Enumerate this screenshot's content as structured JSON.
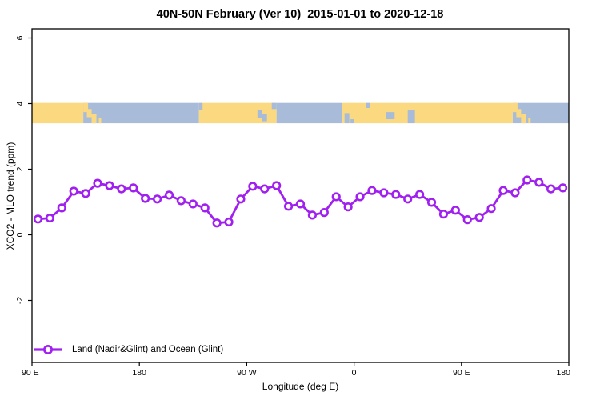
{
  "title": "40N-50N February (Ver 10)  2015-01-01 to 2020-12-18",
  "legend": {
    "label": "Land (Nadir&Glint) and Ocean (Glint)"
  },
  "colors": {
    "series": "#A020F0",
    "land": "#FBD980",
    "ocean": "#A8BCDA",
    "axis": "#000000",
    "marker_fill": "#FFFFFF"
  },
  "chart_data": {
    "type": "line",
    "title": "40N-50N February (Ver 10)  2015-01-01 to 2020-12-18",
    "xlabel": "Longitude (deg E)",
    "ylabel": "XCO2 - MLO trend (ppm)",
    "series_name": "Land (Nadir&Glint) and Ocean (Glint)",
    "xlim": [
      90,
      540
    ],
    "ylim": [
      -3.9,
      6.3
    ],
    "grid": false,
    "legend_position": "bottom-left",
    "marker": "open-circle",
    "xticks": [
      {
        "value": 90,
        "label": "90 E"
      },
      {
        "value": 180,
        "label": "180"
      },
      {
        "value": 270,
        "label": "90 W"
      },
      {
        "value": 360,
        "label": "0"
      },
      {
        "value": 450,
        "label": "90 E"
      },
      {
        "value": 540,
        "label": "180"
      }
    ],
    "yticks": [
      -2,
      0,
      2,
      4,
      6
    ],
    "x": [
      95,
      105,
      115,
      125,
      135,
      145,
      155,
      165,
      175,
      185,
      195,
      205,
      215,
      225,
      235,
      245,
      255,
      265,
      275,
      285,
      295,
      305,
      315,
      325,
      335,
      345,
      355,
      365,
      375,
      385,
      395,
      405,
      415,
      425,
      435,
      445,
      455,
      465,
      475,
      485,
      495,
      505,
      515,
      525,
      535
    ],
    "y": [
      0.48,
      0.51,
      0.82,
      1.33,
      1.26,
      1.57,
      1.5,
      1.4,
      1.43,
      1.11,
      1.09,
      1.21,
      1.04,
      0.94,
      0.82,
      0.36,
      0.39,
      1.09,
      1.48,
      1.4,
      1.5,
      0.87,
      0.94,
      0.6,
      0.68,
      1.16,
      0.85,
      1.16,
      1.35,
      1.28,
      1.23,
      1.09,
      1.23,
      0.99,
      0.63,
      0.75,
      0.46,
      0.53,
      0.8,
      1.35,
      1.28,
      1.67,
      1.6,
      1.4,
      1.43
    ],
    "map_band": {
      "description": "40N-50N world land/ocean strip, longitudes 90E eastward wrapping to 180",
      "y_top_value": 4.02,
      "y_bottom_value": 3.4,
      "segments": [
        {
          "from": 90,
          "to": 133,
          "surface": "land"
        },
        {
          "from": 133,
          "to": 230,
          "surface": "ocean"
        },
        {
          "from": 230,
          "to": 295,
          "surface": "land"
        },
        {
          "from": 295,
          "to": 350,
          "surface": "ocean"
        },
        {
          "from": 350,
          "to": 493,
          "surface": "land"
        },
        {
          "from": 493,
          "to": 540,
          "surface": "ocean"
        }
      ],
      "details": [
        {
          "from": 133,
          "to": 137,
          "top": 0.0,
          "bot": 0.45,
          "surface": "land"
        },
        {
          "from": 136,
          "to": 140,
          "top": 0.3,
          "bot": 0.7,
          "surface": "land"
        },
        {
          "from": 140,
          "to": 144,
          "top": 0.55,
          "bot": 1.0,
          "surface": "land"
        },
        {
          "from": 146,
          "to": 148,
          "top": 0.75,
          "bot": 1.0,
          "surface": "land"
        },
        {
          "from": 230,
          "to": 233,
          "top": 0.0,
          "bot": 0.35,
          "surface": "ocean"
        },
        {
          "from": 279,
          "to": 283,
          "top": 0.35,
          "bot": 0.75,
          "surface": "ocean"
        },
        {
          "from": 283,
          "to": 287,
          "top": 0.55,
          "bot": 0.9,
          "surface": "ocean"
        },
        {
          "from": 291,
          "to": 295,
          "top": 0.0,
          "bot": 0.3,
          "surface": "ocean"
        },
        {
          "from": 352,
          "to": 356,
          "top": 0.5,
          "bot": 1.0,
          "surface": "ocean"
        },
        {
          "from": 357,
          "to": 360,
          "top": 0.8,
          "bot": 1.0,
          "surface": "ocean"
        },
        {
          "from": 370,
          "to": 373,
          "top": 0.0,
          "bot": 0.25,
          "surface": "ocean"
        },
        {
          "from": 387,
          "to": 394,
          "top": 0.45,
          "bot": 0.8,
          "surface": "ocean"
        },
        {
          "from": 405,
          "to": 411,
          "top": 0.35,
          "bot": 1.0,
          "surface": "ocean"
        },
        {
          "from": 493,
          "to": 497,
          "top": 0.0,
          "bot": 0.45,
          "surface": "land"
        },
        {
          "from": 496,
          "to": 500,
          "top": 0.3,
          "bot": 0.7,
          "surface": "land"
        },
        {
          "from": 500,
          "to": 504,
          "top": 0.55,
          "bot": 1.0,
          "surface": "land"
        },
        {
          "from": 506,
          "to": 508,
          "top": 0.75,
          "bot": 1.0,
          "surface": "land"
        }
      ]
    }
  }
}
